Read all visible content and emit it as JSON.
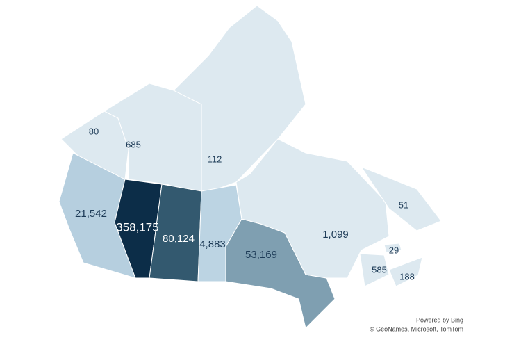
{
  "map": {
    "regions": [
      {
        "value": 80,
        "label": "80",
        "color": "#dde9f0"
      },
      {
        "value": 685,
        "label": "685",
        "color": "#dde9f0"
      },
      {
        "value": 112,
        "label": "112",
        "color": "#dde9f0"
      },
      {
        "value": 21542,
        "label": "21,542",
        "color": "#b6cfdf"
      },
      {
        "value": 358175,
        "label": "358,175",
        "color": "#0c2d48"
      },
      {
        "value": 80124,
        "label": "80,124",
        "color": "#33596f"
      },
      {
        "value": 4883,
        "label": "4,883",
        "color": "#bcd4e3"
      },
      {
        "value": 53169,
        "label": "53,169",
        "color": "#7f9fb1"
      },
      {
        "value": 1099,
        "label": "1,099",
        "color": "#dde9f0"
      },
      {
        "value": 51,
        "label": "51",
        "color": "#dde9f0"
      },
      {
        "value": 29,
        "label": "29",
        "color": "#dde9f0"
      },
      {
        "value": 585,
        "label": "585",
        "color": "#dde9f0"
      },
      {
        "value": 188,
        "label": "188",
        "color": "#dde9f0"
      }
    ],
    "attribution": [
      "Powered by Bing",
      "© GeoNames, Microsoft, TomTom"
    ]
  }
}
